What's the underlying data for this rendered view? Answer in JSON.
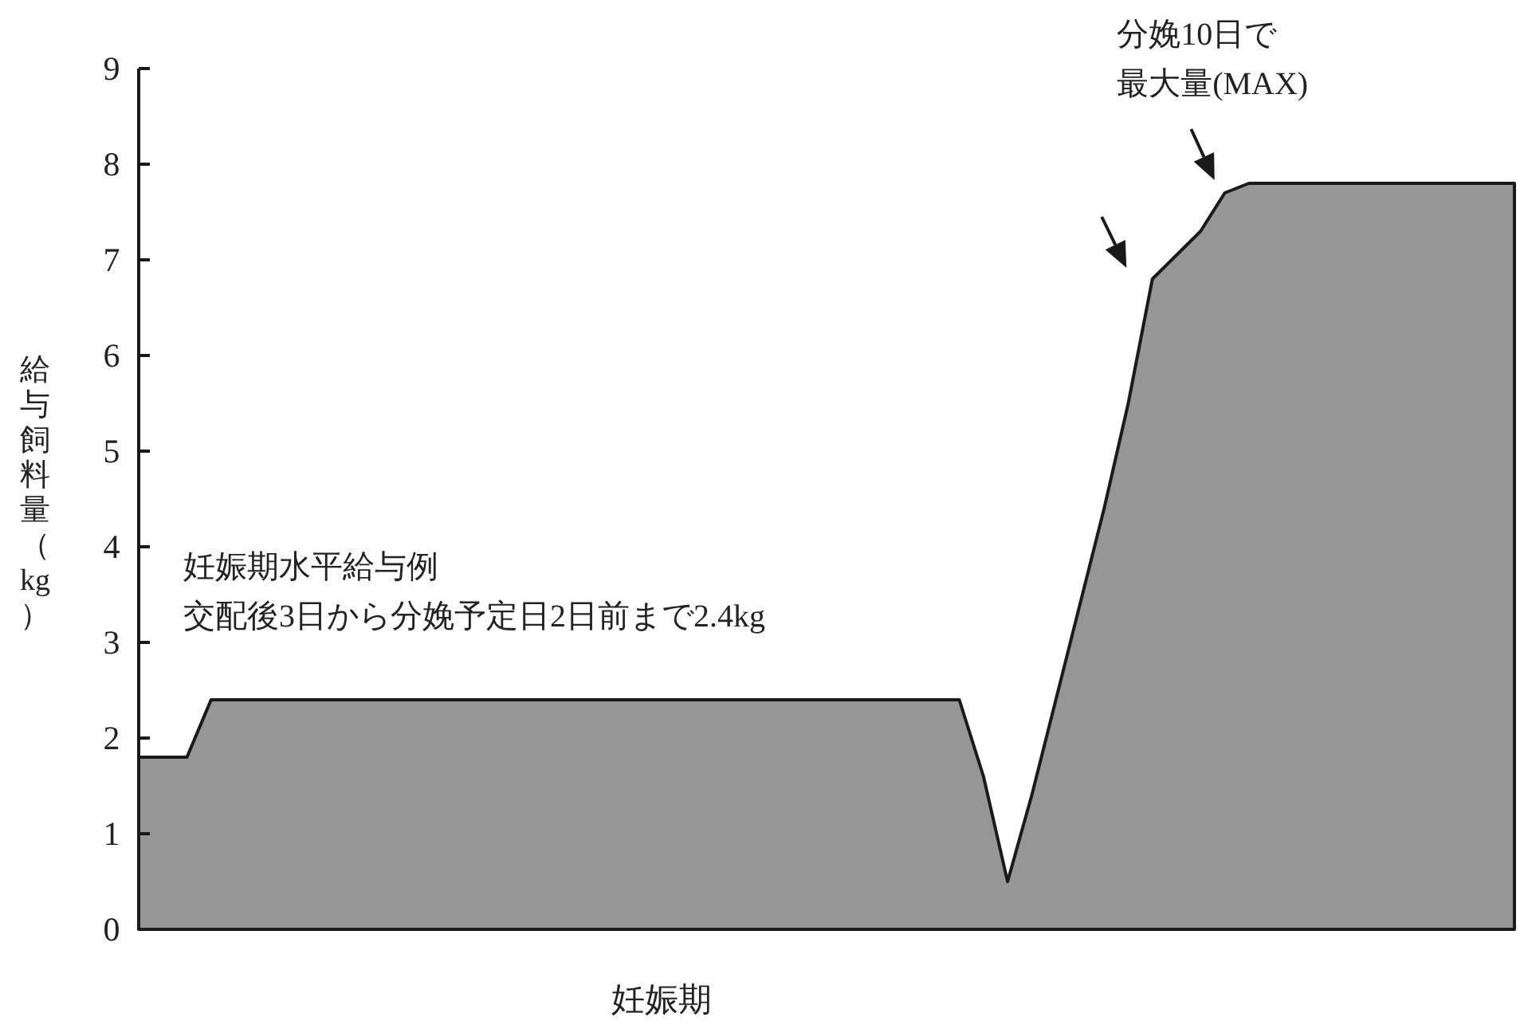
{
  "chart_data": {
    "type": "area",
    "xlabel": "妊娠期",
    "ylabel": "給与飼料量（kg）",
    "categories": [
      null,
      null,
      null,
      null,
      null,
      null,
      null,
      null,
      null,
      null,
      null,
      null,
      null,
      null,
      null,
      null,
      null,
      null,
      null,
      null,
      null,
      null,
      null,
      null,
      null,
      null,
      null,
      null,
      null,
      null,
      null,
      null,
      null,
      null,
      null,
      null,
      null,
      null,
      null,
      null,
      null,
      null,
      null,
      null,
      null,
      null,
      null,
      null,
      null,
      null,
      null,
      null,
      null,
      null,
      null,
      null,
      null,
      null
    ],
    "series": [
      {
        "color": "#969696",
        "values": [
          1.8,
          1.8,
          1.8,
          2.4,
          2.4,
          2.4,
          2.4,
          2.4,
          2.4,
          2.4,
          2.4,
          2.4,
          2.4,
          2.4,
          2.4,
          2.4,
          2.4,
          2.4,
          2.4,
          2.4,
          2.4,
          2.4,
          2.4,
          2.4,
          2.4,
          2.4,
          2.4,
          2.4,
          2.4,
          2.4,
          2.4,
          2.4,
          2.4,
          2.4,
          2.4,
          1.6,
          0.5,
          1.4,
          2.4,
          3.4,
          4.4,
          5.5,
          6.8,
          7.05,
          7.3,
          7.7,
          7.8,
          7.8,
          7.8,
          7.8,
          7.8,
          7.8,
          7.8,
          7.8,
          7.8,
          7.8,
          7.8,
          7.8
        ]
      }
    ],
    "ylim": [
      0,
      9
    ],
    "yticks": [
      0,
      1,
      2,
      3,
      4,
      5,
      6,
      7,
      8,
      9
    ],
    "annotations": [
      "妊娠期水平給与例",
      "交配後3日から分娩予定日2日前まで2.4kg",
      "分娩10日で",
      "最大量(MAX)"
    ]
  }
}
